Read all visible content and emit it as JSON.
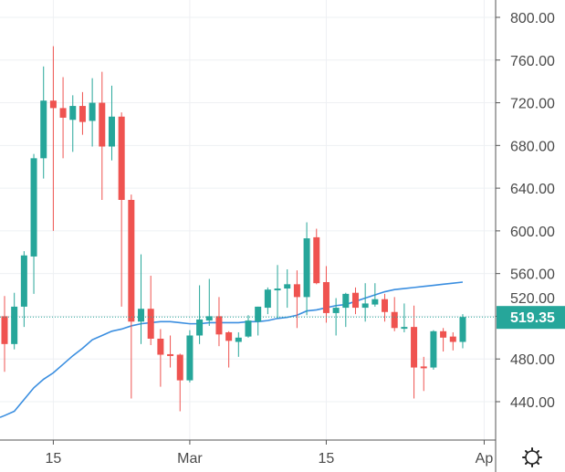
{
  "chart_data": {
    "type": "candlestick",
    "title": "",
    "ylim": [
      420,
      810
    ],
    "y_ticks": [
      "800.00",
      "760.00",
      "720.00",
      "680.00",
      "640.00",
      "600.00",
      "560.00",
      "520.00",
      "480.00",
      "440.00"
    ],
    "y_tick_values": [
      800,
      760,
      720,
      680,
      640,
      600,
      560,
      520,
      480,
      440
    ],
    "x_labels": [
      {
        "text": "15",
        "index": 5
      },
      {
        "text": "Mar",
        "index": 19
      },
      {
        "text": "15",
        "index": 33
      },
      {
        "text": "Ap",
        "index": 49.2
      }
    ],
    "grid": true,
    "last_price": 519.35,
    "last_price_label": "519.35",
    "colors": {
      "up": "#26a69a",
      "down": "#ef5350",
      "ma": "#3a8ee0",
      "grid": "#eef0f3",
      "axis": "#555555"
    },
    "candles": [
      [
        520,
        539,
        468,
        494
      ],
      [
        494,
        542,
        489,
        529
      ],
      [
        529,
        581,
        510,
        577
      ],
      [
        576,
        672,
        541,
        668
      ],
      [
        668,
        754,
        649,
        722
      ],
      [
        722,
        773,
        600,
        715
      ],
      [
        715,
        744,
        668,
        706
      ],
      [
        704,
        727,
        674,
        717
      ],
      [
        717,
        730,
        690,
        702
      ],
      [
        703,
        743,
        679,
        720
      ],
      [
        720,
        749,
        629,
        679
      ],
      [
        679,
        736,
        666,
        707
      ],
      [
        707,
        711,
        529,
        629
      ],
      [
        629,
        634,
        443,
        515
      ],
      [
        515,
        578,
        494,
        527
      ],
      [
        527,
        558,
        493,
        499
      ],
      [
        499,
        508,
        454,
        484
      ],
      [
        484.5,
        502,
        472,
        483
      ],
      [
        484,
        485,
        431,
        460
      ],
      [
        460,
        507,
        458,
        502
      ],
      [
        502,
        549,
        494,
        517
      ],
      [
        516,
        555,
        511,
        520
      ],
      [
        520,
        538,
        492,
        503
      ],
      [
        505,
        506,
        472,
        497
      ],
      [
        496,
        505,
        482,
        500
      ],
      [
        501,
        521,
        500,
        516
      ],
      [
        515,
        529,
        502,
        529
      ],
      [
        528,
        547,
        522,
        545
      ],
      [
        545,
        568,
        518,
        546
      ],
      [
        546,
        564,
        528,
        550
      ],
      [
        550,
        563,
        509,
        538
      ],
      [
        538,
        608,
        521,
        593
      ],
      [
        594,
        602,
        550,
        551
      ],
      [
        552,
        567,
        514,
        523
      ],
      [
        523,
        537,
        502,
        528
      ],
      [
        528,
        542,
        510,
        541
      ],
      [
        542,
        547,
        522,
        528
      ],
      [
        528,
        551,
        515,
        532
      ],
      [
        531,
        551,
        529,
        536
      ],
      [
        536,
        541,
        515,
        524
      ],
      [
        524,
        538,
        506,
        509
      ],
      [
        509,
        532,
        505,
        510
      ],
      [
        510,
        530,
        443,
        472
      ],
      [
        473,
        482,
        450,
        472
      ],
      [
        472,
        507,
        470,
        506
      ],
      [
        506,
        509,
        487,
        500
      ],
      [
        501,
        505,
        488,
        496
      ],
      [
        496,
        522,
        490,
        519.35
      ]
    ],
    "moving_average": [
      427,
      431,
      442,
      453,
      461,
      467,
      475,
      483,
      490,
      498,
      502,
      506,
      508,
      511,
      513,
      514,
      515,
      515,
      514,
      513,
      513,
      514,
      514,
      514,
      514,
      515,
      515,
      516,
      518,
      519,
      521,
      525,
      526,
      528,
      530,
      531,
      534,
      537,
      540,
      543,
      545,
      546,
      547,
      548,
      549,
      550,
      551,
      552
    ]
  },
  "settings_icon": "gear-icon"
}
